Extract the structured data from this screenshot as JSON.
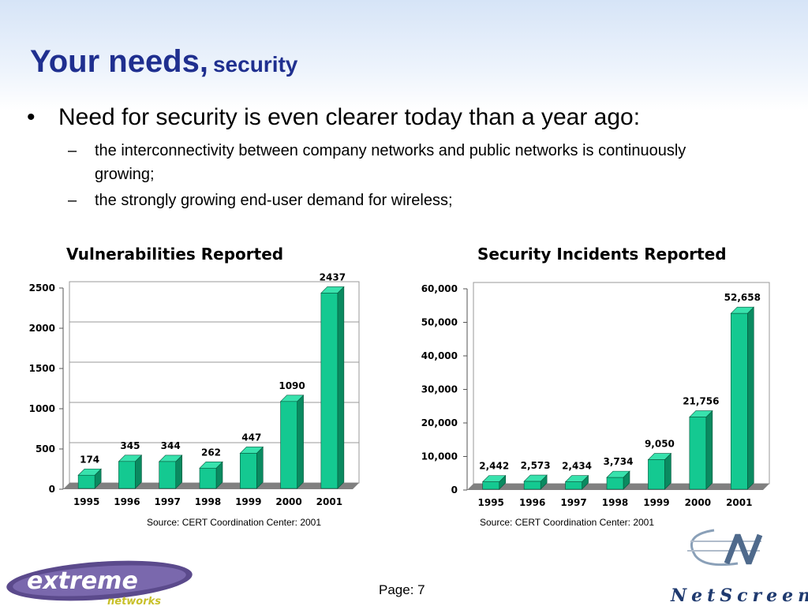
{
  "slide": {
    "title_main": "Your needs,",
    "title_sub": "security",
    "bullet_symbol": "•",
    "bullet_main": "Need for security is even clearer today than a year ago:",
    "dash_symbol": "–",
    "sub_bullets": [
      "the interconnectivity between company networks and public networks is continuously growing;",
      "the strongly growing end-user demand for wireless;"
    ],
    "page_label": "Page: 7"
  },
  "logos": {
    "left_brand": "extreme",
    "left_brand_sub": "networks",
    "right_brand": "NetScreen"
  },
  "colors": {
    "title": "#1f2f8f",
    "bar_front": "#14c991",
    "bar_side": "#0a8a60",
    "bar_top": "#38e2ad",
    "floor": "#808080"
  },
  "chart_data": [
    {
      "type": "bar",
      "title": "Vulnerabilities Reported",
      "categories": [
        "1995",
        "1996",
        "1997",
        "1998",
        "1999",
        "2000",
        "2001"
      ],
      "values": [
        174,
        345,
        344,
        262,
        447,
        1090,
        2437
      ],
      "value_labels": [
        "174",
        "345",
        "344",
        "262",
        "447",
        "1090",
        "2437"
      ],
      "yticks": [
        "0",
        "500",
        "1000",
        "1500",
        "2000",
        "2500"
      ],
      "ytick_values": [
        0,
        500,
        1000,
        1500,
        2000,
        2500
      ],
      "ylim": [
        0,
        2500
      ],
      "grid": true,
      "source": "Source: CERT Coordination Center: 2001"
    },
    {
      "type": "bar",
      "title": "Security Incidents Reported",
      "categories": [
        "1995",
        "1996",
        "1997",
        "1998",
        "1999",
        "2000",
        "2001"
      ],
      "values": [
        2442,
        2573,
        2434,
        3734,
        9050,
        21756,
        52658
      ],
      "value_labels": [
        "2,442",
        "2,573",
        "2,434",
        "3,734",
        "9,050",
        "21,756",
        "52,658"
      ],
      "yticks": [
        "0",
        "10,000",
        "20,000",
        "30,000",
        "40,000",
        "50,000",
        "60,000"
      ],
      "ytick_values": [
        0,
        10000,
        20000,
        30000,
        40000,
        50000,
        60000
      ],
      "ylim": [
        0,
        60000
      ],
      "grid": false,
      "source": "Source: CERT Coordination Center: 2001"
    }
  ]
}
